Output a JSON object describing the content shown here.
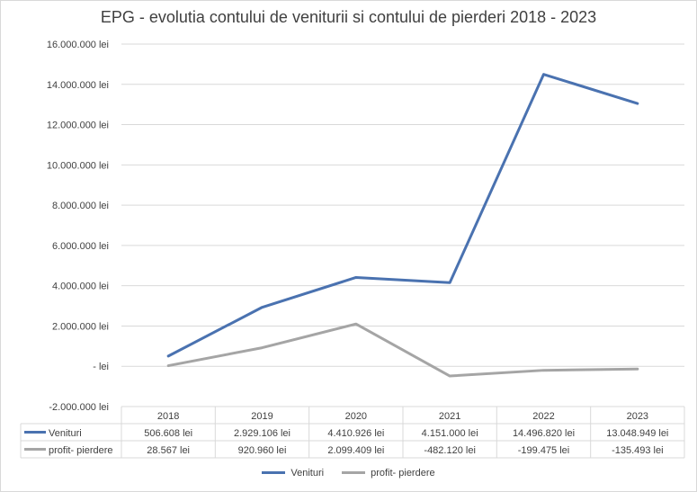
{
  "chart_data": {
    "type": "line",
    "title": "EPG - evolutia contului de veniturii si contului de pierderi 2018 - 2023",
    "categories": [
      "2018",
      "2019",
      "2020",
      "2021",
      "2022",
      "2023"
    ],
    "ylim": [
      -2000000,
      16000000
    ],
    "ytick_values": [
      -2000000,
      0,
      2000000,
      4000000,
      6000000,
      8000000,
      10000000,
      12000000,
      14000000,
      16000000
    ],
    "ytick_labels": [
      "-2.000.000 lei",
      "-   lei",
      "2.000.000 lei",
      "4.000.000 lei",
      "6.000.000 lei",
      "8.000.000 lei",
      "10.000.000 lei",
      "12.000.000 lei",
      "14.000.000 lei",
      "16.000.000 lei"
    ],
    "grid": true,
    "legend": "bottom",
    "series": [
      {
        "name": "Venituri",
        "color": "#4a72b0",
        "values": [
          506608,
          2929106,
          4410926,
          4151000,
          14496820,
          13048949
        ],
        "labels": [
          "506.608 lei",
          "2.929.106 lei",
          "4.410.926 lei",
          "4.151.000 lei",
          "14.496.820 lei",
          "13.048.949 lei"
        ]
      },
      {
        "name": "profit- pierdere",
        "color": "#a5a5a5",
        "values": [
          28567,
          920960,
          2099409,
          -482120,
          -199475,
          -135493
        ],
        "labels": [
          "28.567 lei",
          "920.960 lei",
          "2.099.409 lei",
          "-482.120 lei",
          "-199.475 lei",
          "-135.493 lei"
        ]
      }
    ]
  }
}
